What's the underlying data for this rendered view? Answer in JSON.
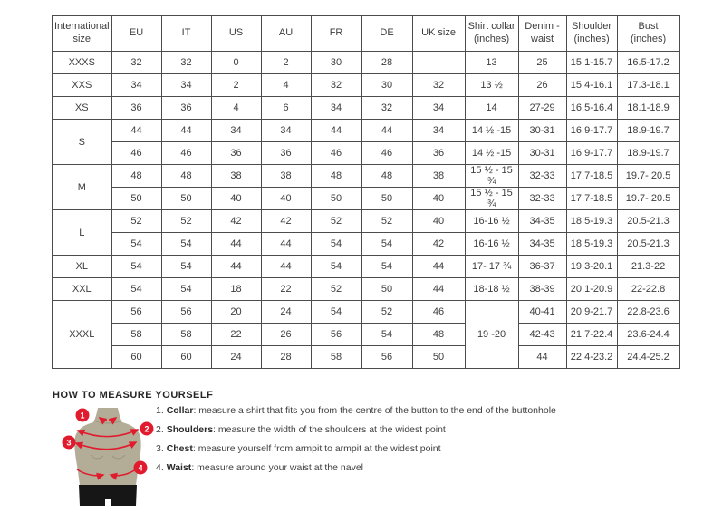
{
  "colors": {
    "accent_red": "#e11b2e",
    "mannequin_body": "#b3ac97",
    "mannequin_shorts": "#161616",
    "table_border": "#4c4c4c"
  },
  "table": {
    "headers": [
      "International size",
      "EU",
      "IT",
      "US",
      "AU",
      "FR",
      "DE",
      "UK size",
      "Shirt collar (inches)",
      "Denim - waist",
      "Shoulder (inches)",
      "Bust (inches)"
    ],
    "collar_col_index": 7,
    "groups": [
      {
        "size": "XXXS",
        "rows": [
          [
            "32",
            "32",
            "0",
            "2",
            "30",
            "28",
            "",
            "13",
            "25",
            "15.1-15.7",
            "16.5-17.2"
          ]
        ]
      },
      {
        "size": "XXS",
        "rows": [
          [
            "34",
            "34",
            "2",
            "4",
            "32",
            "30",
            "32",
            "13 ½",
            "26",
            "15.4-16.1",
            "17.3-18.1"
          ]
        ]
      },
      {
        "size": "XS",
        "rows": [
          [
            "36",
            "36",
            "4",
            "6",
            "34",
            "32",
            "34",
            "14",
            "27-29",
            "16.5-16.4",
            "18.1-18.9"
          ]
        ]
      },
      {
        "size": "S",
        "rows": [
          [
            "44",
            "44",
            "34",
            "34",
            "44",
            "44",
            "34",
            "14 ½ -15",
            "30-31",
            "16.9-17.7",
            "18.9-19.7"
          ],
          [
            "46",
            "46",
            "36",
            "36",
            "46",
            "46",
            "36",
            "14 ½ -15",
            "30-31",
            "16.9-17.7",
            "18.9-19.7"
          ]
        ]
      },
      {
        "size": "M",
        "rows": [
          [
            "48",
            "48",
            "38",
            "38",
            "48",
            "48",
            "38",
            "15 ½ - 15 ¾",
            "32-33",
            "17.7-18.5",
            "19.7- 20.5"
          ],
          [
            "50",
            "50",
            "40",
            "40",
            "50",
            "50",
            "40",
            "15 ½ - 15 ¾",
            "32-33",
            "17.7-18.5",
            "19.7- 20.5"
          ]
        ]
      },
      {
        "size": "L",
        "rows": [
          [
            "52",
            "52",
            "42",
            "42",
            "52",
            "52",
            "40",
            "16-16 ½",
            "34-35",
            "18.5-19.3",
            "20.5-21.3"
          ],
          [
            "54",
            "54",
            "44",
            "44",
            "54",
            "54",
            "42",
            "16-16 ½",
            "34-35",
            "18.5-19.3",
            "20.5-21.3"
          ]
        ]
      },
      {
        "size": "XL",
        "rows": [
          [
            "54",
            "54",
            "44",
            "44",
            "54",
            "54",
            "44",
            "17- 17 ¾",
            "36-37",
            "19.3-20.1",
            "21.3-22"
          ]
        ]
      },
      {
        "size": "XXL",
        "rows": [
          [
            "54",
            "54",
            "18",
            "22",
            "52",
            "50",
            "44",
            "18-18 ½",
            "38-39",
            "20.1-20.9",
            "22-22.8"
          ]
        ]
      },
      {
        "size": "XXXL",
        "collar_rowspan": 3,
        "rows": [
          [
            "56",
            "56",
            "20",
            "24",
            "54",
            "52",
            "46",
            "19 -20",
            "40-41",
            "20.9-21.7",
            "22.8-23.6"
          ],
          [
            "58",
            "58",
            "22",
            "26",
            "56",
            "54",
            "48",
            "",
            "42-43",
            "21.7-22.4",
            "23.6-24.4"
          ],
          [
            "60",
            "60",
            "24",
            "28",
            "58",
            "56",
            "50",
            "",
            "44",
            "22.4-23.2",
            "24.4-25.2"
          ]
        ]
      }
    ]
  },
  "measure": {
    "heading": "HOW TO MEASURE YOURSELF",
    "items": [
      {
        "num": "1.",
        "term": "Collar",
        "desc": "measure a shirt that fits you from the centre of the button to the end of the buttonhole"
      },
      {
        "num": "2.",
        "term": "Shoulders",
        "desc": "measure the width of the shoulders at the widest point"
      },
      {
        "num": "3.",
        "term": "Chest",
        "desc": "measure yourself from armpit to armpit at the widest point"
      },
      {
        "num": "4.",
        "term": "Waist",
        "desc": "measure around your waist at the navel"
      }
    ],
    "point_labels": [
      "1",
      "2",
      "3",
      "4"
    ]
  }
}
